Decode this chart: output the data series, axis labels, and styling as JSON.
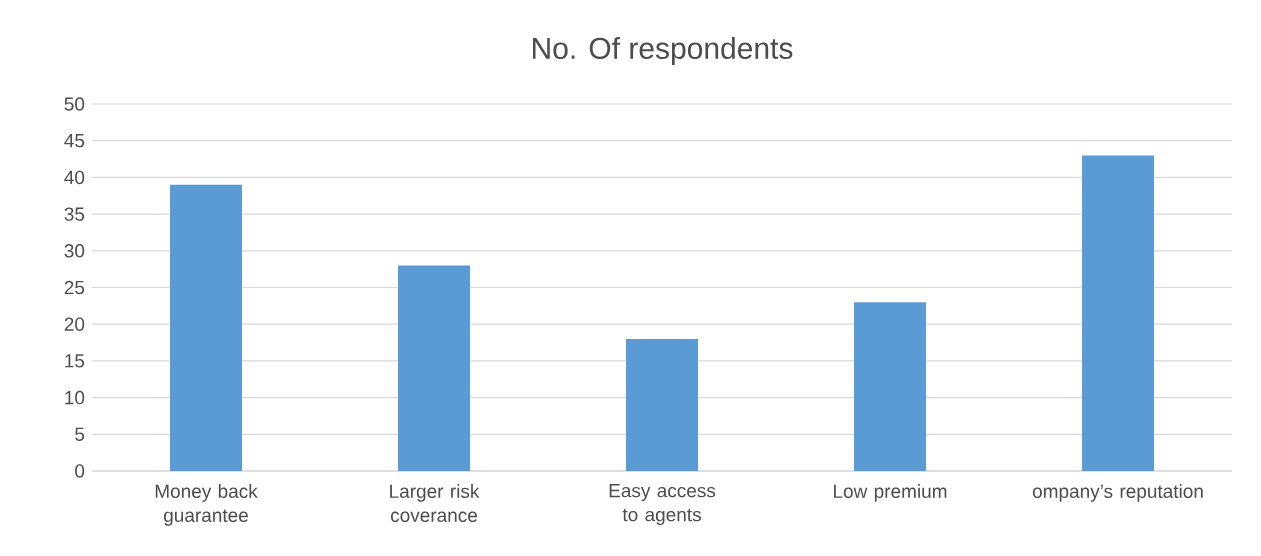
{
  "chart_data": {
    "type": "bar",
    "title": "No. Of respondents",
    "categories": [
      "Money back guarantee",
      "Larger risk coverance",
      "Easy access to agents",
      "Low premium",
      "ompany’s reputation"
    ],
    "values": [
      39,
      28,
      18,
      23,
      43
    ],
    "color": "#5b9bd5",
    "ylim": [
      0,
      50
    ],
    "yticks": [
      0,
      5,
      10,
      15,
      20,
      25,
      30,
      35,
      40,
      45,
      50
    ],
    "grid": "y"
  }
}
